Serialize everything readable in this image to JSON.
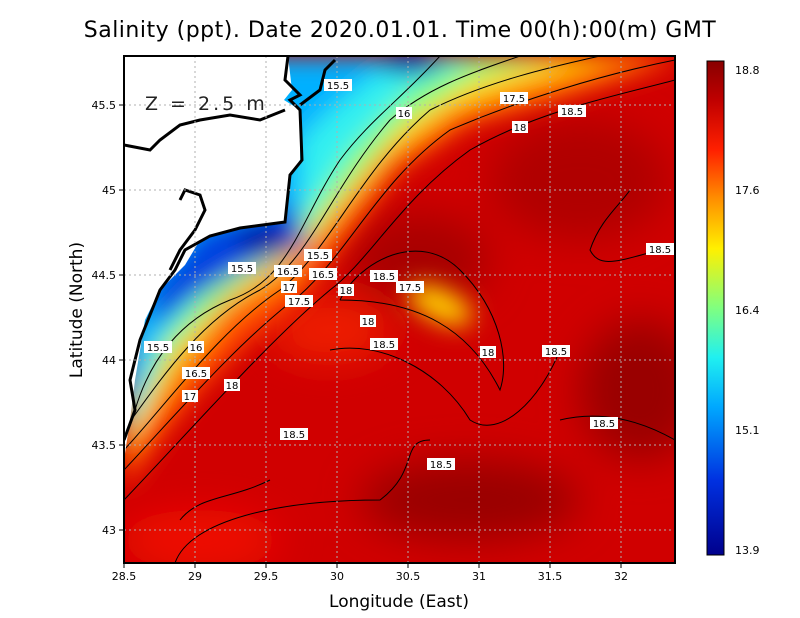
{
  "title": "Salinity (ppt). Date 2020.01.01. Time 00(h):00(m) GMT",
  "depth_label": "Z = 2.5 m",
  "x_axis": {
    "label": "Longitude (East)",
    "ticks": [
      "28.5",
      "29",
      "29.5",
      "30",
      "30.5",
      "31",
      "31.5",
      "32"
    ]
  },
  "y_axis": {
    "label": "Latitude (North)",
    "ticks": [
      "45.5",
      "45",
      "44.5",
      "44",
      "43.5",
      "43"
    ]
  },
  "colorbar": {
    "labels": [
      "18.8",
      "17.6",
      "16.4",
      "15.1",
      "13.9"
    ],
    "min": 13.9,
    "max": 18.8
  },
  "contour_labels": [
    "15.5",
    "16",
    "17.5",
    "18.5",
    "18",
    "18.5",
    "15.5",
    "16.5",
    "15.5",
    "16.5",
    "17",
    "17.5",
    "18.5",
    "18",
    "17.5",
    "18",
    "18.5",
    "18",
    "18.5",
    "15.5",
    "16",
    "16.5",
    "17",
    "18",
    "18.5",
    "18.5",
    "18.5"
  ]
}
